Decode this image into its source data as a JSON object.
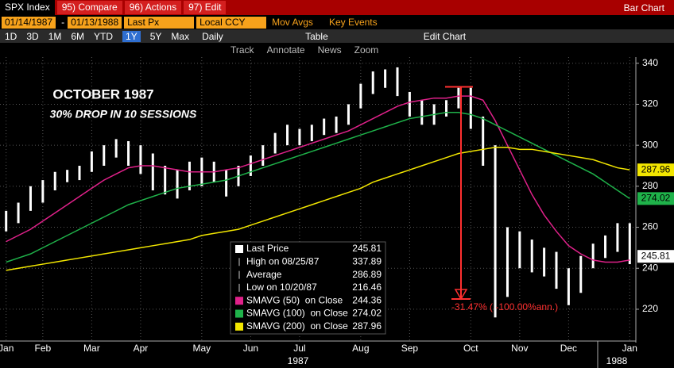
{
  "toolbar": {
    "security": "SPX Index",
    "menu": [
      "95) Compare",
      "96) Actions",
      "97) Edit"
    ],
    "view": "Bar Chart",
    "start_date": "01/14/1987",
    "date_sep": "-",
    "end_date": "01/13/1988",
    "field": "Last Px",
    "currency": "Local CCY",
    "mov_avgs": "Mov Avgs",
    "key_events": "Key Events",
    "periods": [
      "1D",
      "3D",
      "1M",
      "6M",
      "YTD",
      "1Y",
      "5Y",
      "Max"
    ],
    "frequency": "Daily",
    "table": "Table",
    "edit_chart": "Edit Chart",
    "tools": [
      "Track",
      "Annotate",
      "News",
      "Zoom"
    ]
  },
  "chart_data": {
    "type": "bar",
    "title": "OCTOBER 1987",
    "subtitle": "30% DROP IN 10 SESSIONS",
    "categories": [
      "Jan",
      null,
      null,
      "Feb",
      null,
      null,
      null,
      "Mar",
      null,
      null,
      null,
      "Apr",
      null,
      null,
      null,
      null,
      "May",
      null,
      null,
      null,
      "Jun",
      null,
      null,
      null,
      "Jul",
      null,
      null,
      null,
      null,
      "Aug",
      null,
      null,
      null,
      "Sep",
      null,
      null,
      null,
      null,
      "Oct",
      null,
      null,
      null,
      "Nov",
      null,
      null,
      null,
      "Dec",
      null,
      null,
      null,
      null,
      "Jan"
    ],
    "year_labels": [
      "1987",
      "1988"
    ],
    "ylim": [
      204.5,
      343
    ],
    "yticks": [
      220,
      240,
      260,
      280,
      300,
      320,
      340
    ],
    "grid": true,
    "series": [
      {
        "color": "#ffffff",
        "high": [
          268,
          272,
          280,
          283,
          287,
          288,
          290,
          297,
          300,
          303,
          302,
          300,
          296,
          290,
          288,
          292,
          294,
          292,
          288,
          290,
          295,
          300,
          306,
          310,
          308,
          310,
          313,
          314,
          320,
          330,
          336,
          337,
          338,
          326,
          322,
          320,
          322,
          328,
          328,
          314,
          300,
          260,
          258,
          254,
          250,
          248,
          240,
          246,
          252,
          256,
          262,
          262
        ],
        "low": [
          258,
          262,
          268,
          272,
          278,
          282,
          283,
          287,
          290,
          294,
          290,
          286,
          278,
          276,
          274,
          278,
          280,
          282,
          275,
          280,
          285,
          290,
          296,
          300,
          300,
          302,
          305,
          306,
          310,
          318,
          325,
          328,
          324,
          314,
          310,
          310,
          314,
          318,
          308,
          290,
          216,
          226,
          240,
          238,
          236,
          230,
          222,
          228,
          240,
          245,
          248,
          242
        ]
      },
      {
        "color": "#e0218a",
        "values": [
          253,
          256,
          259,
          263,
          267,
          271,
          275,
          279,
          283,
          286,
          289,
          290,
          290,
          289,
          288,
          287,
          287,
          287,
          288,
          289,
          291,
          293,
          295,
          297,
          299,
          301,
          303,
          305,
          307,
          310,
          313,
          316,
          319,
          321,
          322,
          323,
          323,
          324,
          324,
          322,
          312,
          300,
          288,
          276,
          266,
          258,
          251,
          247,
          244,
          243,
          243,
          244
        ]
      },
      {
        "color": "#1fb24a",
        "values": [
          243,
          245,
          247,
          250,
          253,
          256,
          259,
          262,
          265,
          268,
          271,
          273,
          275,
          277,
          279,
          280,
          281,
          282,
          283,
          285,
          287,
          289,
          291,
          293,
          295,
          297,
          299,
          301,
          303,
          305,
          307,
          309,
          311,
          313,
          314,
          315,
          316,
          316,
          315,
          313,
          310,
          307,
          304,
          301,
          298,
          295,
          292,
          289,
          286,
          282,
          278,
          274
        ]
      },
      {
        "color": "#f2e600",
        "values": [
          239,
          240,
          241,
          242,
          243,
          244,
          245,
          246,
          247,
          248,
          249,
          250,
          251,
          252,
          253,
          254,
          256,
          257,
          258,
          259,
          261,
          263,
          265,
          267,
          269,
          271,
          273,
          275,
          277,
          279,
          282,
          284,
          286,
          288,
          290,
          292,
          294,
          296,
          297,
          298,
          299,
          299,
          298,
          298,
          297,
          296,
          295,
          294,
          293,
          291,
          289,
          288
        ]
      }
    ],
    "legend": [
      {
        "label": "Last Price",
        "value": "245.81",
        "color": "#ffffff"
      },
      {
        "label": "High on 08/25/87",
        "value": "337.89"
      },
      {
        "label": "Average",
        "value": "286.89"
      },
      {
        "label": "Low on 10/20/87",
        "value": "216.46"
      },
      {
        "label": "SMAVG (50)  on Close",
        "value": "244.36",
        "color": "#e0218a"
      },
      {
        "label": "SMAVG (100)  on Close",
        "value": "274.02",
        "color": "#1fb24a"
      },
      {
        "label": "SMAVG (200)  on Close",
        "value": "287.96",
        "color": "#f2e600"
      }
    ],
    "measure": {
      "from": 328.5,
      "to": 225,
      "label": "-31.47% ( -100.00%ann.)",
      "color": "#ff3030"
    }
  }
}
